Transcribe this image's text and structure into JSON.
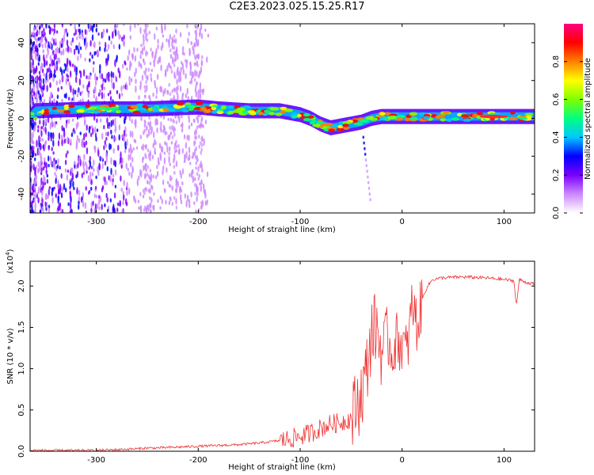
{
  "title": "C2E3.2023.025.15.25.R17",
  "chart_data": [
    {
      "type": "heatmap",
      "xlabel": "Height of straight line (km)",
      "ylabel": "Frequency (Hz)",
      "xlim": [
        -365,
        130
      ],
      "ylim": [
        -50,
        50
      ],
      "x_ticks": [
        -300,
        -200,
        -100,
        0,
        100
      ],
      "y_ticks": [
        -40,
        -20,
        0,
        20,
        40
      ],
      "colorbar": {
        "label": "Normalized spectral amplitude",
        "range": [
          0,
          1
        ],
        "ticks": [
          0.0,
          0.2,
          0.4,
          0.6,
          0.8
        ],
        "colormap": [
          "#ffffff",
          "#cc88ff",
          "#7a00ff",
          "#0000ff",
          "#00c8ff",
          "#00ff80",
          "#80ff00",
          "#ffff00",
          "#ff8000",
          "#ff0000",
          "#ff0080"
        ]
      },
      "band_center": [
        {
          "x": -360,
          "y": 4
        },
        {
          "x": -300,
          "y": 5
        },
        {
          "x": -250,
          "y": 5
        },
        {
          "x": -200,
          "y": 6
        },
        {
          "x": -180,
          "y": 5
        },
        {
          "x": -150,
          "y": 4
        },
        {
          "x": -120,
          "y": 4
        },
        {
          "x": -100,
          "y": 2
        },
        {
          "x": -90,
          "y": 0
        },
        {
          "x": -80,
          "y": -3
        },
        {
          "x": -70,
          "y": -5
        },
        {
          "x": -60,
          "y": -4
        },
        {
          "x": -50,
          "y": -3
        },
        {
          "x": -40,
          "y": -2
        },
        {
          "x": -30,
          "y": 0
        },
        {
          "x": -20,
          "y": 1
        },
        {
          "x": 0,
          "y": 1
        },
        {
          "x": 50,
          "y": 1
        },
        {
          "x": 100,
          "y": 1
        },
        {
          "x": 130,
          "y": 1
        }
      ]
    },
    {
      "type": "line",
      "xlabel": "Height of straight line (km)",
      "ylabel": "SNR (10 * v/v)",
      "y_multiplier": "(x10^4)",
      "xlim": [
        -365,
        130
      ],
      "ylim": [
        0,
        2.3
      ],
      "x_ticks": [
        -300,
        -200,
        -100,
        0,
        100
      ],
      "y_ticks": [
        0.0,
        0.5,
        1.0,
        1.5,
        2.0
      ],
      "color": "#ee3333",
      "series": [
        {
          "x": [
            -365,
            -350,
            -300,
            -280,
            -260,
            -250,
            -240,
            -220,
            -200,
            -180,
            -160,
            -140,
            -120,
            -110,
            -100,
            -90,
            -80,
            -70,
            -60,
            -50,
            -45,
            -40,
            -35,
            -30,
            -25,
            -20,
            -15,
            -10,
            -5,
            0,
            5,
            10,
            15,
            20,
            25,
            30,
            40,
            60,
            80,
            100,
            110,
            112,
            115,
            120,
            130
          ],
          "y": [
            0.01,
            0.01,
            0.01,
            0.02,
            0.03,
            0.04,
            0.04,
            0.05,
            0.06,
            0.07,
            0.08,
            0.1,
            0.13,
            0.15,
            0.18,
            0.22,
            0.28,
            0.33,
            0.35,
            0.4,
            0.55,
            0.7,
            0.95,
            1.45,
            1.5,
            1.2,
            1.4,
            1.2,
            1.35,
            1.3,
            1.2,
            1.8,
            1.5,
            1.85,
            2.0,
            2.08,
            2.1,
            2.11,
            2.1,
            2.08,
            2.06,
            1.75,
            2.08,
            2.05,
            2.02
          ]
        }
      ]
    }
  ]
}
